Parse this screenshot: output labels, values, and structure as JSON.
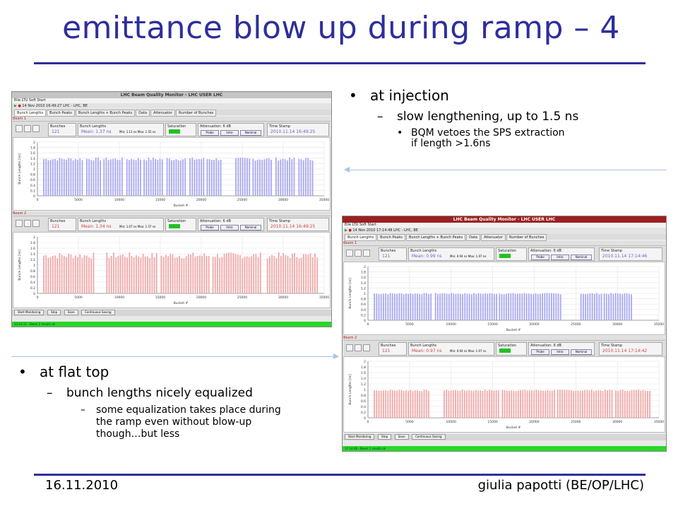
{
  "slide": {
    "title": "emittance blow up during ramp – 4",
    "footer_date": "16.11.2010",
    "footer_author": "giulia papotti (BE/OP/LHC)"
  },
  "injection": {
    "heading": "at injection",
    "sub": "slow lengthening, up to 1.5 ns",
    "detail_line1": "BQM vetoes the SPS extraction",
    "detail_line2": "if length >1.6ns"
  },
  "flattop": {
    "heading": "at flat top",
    "sub": "bunch lengths nicely equalized",
    "detail_line1": "some equalization takes place during",
    "detail_line2": "the ramp even without blow-up",
    "detail_line3": "though…but less"
  },
  "colors": {
    "accent": "#2e2e9c",
    "beam1": "#a8a8f0",
    "beam2": "#f0a8a8",
    "ok_green": "#28d828"
  },
  "screen1": {
    "window_title": "LHC Beam Quality Monitor - LHC USER LHC",
    "menu": "Eile  LTU Soft Start",
    "toolbar_text": "14 Nov 2010  16:49:27  LHC - LHC, BE",
    "tabs": [
      "Bunch Lengths",
      "Bunch Peaks",
      "Bunch Lengths + Bunch Peaks",
      "Data",
      "Attenuator",
      "Number of Bunches"
    ],
    "beam1_label": "Beam 1",
    "beam2_label": "Beam 2",
    "bunches_label": "Bunches",
    "bunch_lengths_label": "Bunch Lengths",
    "saturation_label": "Saturation",
    "attenuation_label_b1": "Attenuation: 6 dB",
    "attenuation_label_b2": "Attenuation: 6 dB",
    "timestamp_label": "Time Stamp",
    "b1_bunches": "121",
    "b1_mean": "Mean: 1.37 ns",
    "b1_minmax": "Min: 1.11 ns    Max: 1.55 ns",
    "b1_timestamp": "2010.11.14 16:49:25",
    "b2_bunches": "121",
    "b2_mean": "Mean: 1.34 ns",
    "b2_minmax": "Min: 1.07 ns    Max: 1.57 ns",
    "b2_timestamp": "2010.11.14 16:49:25",
    "btn_probe": "Probe",
    "btn_intro": "Intro",
    "btn_nominal": "Nominal",
    "ylabel": "Bunch Lengths [ns]",
    "xlabel": "Bucket #",
    "xticks": [
      "0",
      "5000",
      "10000",
      "15000",
      "20000",
      "25000",
      "30000",
      "35000"
    ],
    "yticks": [
      "0",
      "0.2",
      "0.4",
      "0.6",
      "0.8",
      "1",
      "1.2",
      "1.4",
      "1.6",
      "1.8",
      "2"
    ],
    "status_start": "Start Monitoring",
    "status_stop": "Stop",
    "status_save": "Save",
    "status_cont": "Continuous Saving",
    "green_text": "13:14:11 - Beam 2 results ok"
  },
  "screen2": {
    "window_title": "LHC Beam Quality Monitor - LHC USER LHC",
    "menu": "Eile  LTU Soft Start",
    "toolbar_text": "14 Nov 2010  17:14:48  LHC - LHC, BE",
    "tabs": [
      "Bunch Lengths",
      "Bunch Peaks",
      "Bunch Lengths + Bunch Peaks",
      "Data",
      "Attenuator",
      "Number of Bunches"
    ],
    "beam1_label": "Beam 1",
    "beam2_label": "Beam 2",
    "bunches_label": "Bunches",
    "bunch_lengths_label": "Bunch Lengths",
    "saturation_label": "Saturation",
    "attenuation_label_b1": "Attenuation: 6 dB",
    "attenuation_label_b2": "Attenuation: 6 dB",
    "timestamp_label": "Time Stamp",
    "b1_bunches": "121",
    "b1_mean": "Mean: 0.99 ns",
    "b1_minmax": "Min: 0.94 ns    Max: 1.07 ns",
    "b1_timestamp": "2010.11.14 17:14:46",
    "b2_bunches": "121",
    "b2_mean": "Mean: 0.97 ns",
    "b2_minmax": "Min: 0.94 ns    Max: 1.07 ns",
    "b2_timestamp": "2010.11.14 17:14:42",
    "btn_probe": "Probe",
    "btn_intro": "Intro",
    "btn_nominal": "Nominal",
    "ylabel": "Bunch Lengths [ns]",
    "xlabel": "Bucket #",
    "xticks": [
      "0",
      "5000",
      "10000",
      "15000",
      "20000",
      "25000",
      "30000",
      "35000"
    ],
    "yticks": [
      "0",
      "0.2",
      "0.4",
      "0.6",
      "0.8",
      "1",
      "1.2",
      "1.4",
      "1.6",
      "1.8",
      "2"
    ],
    "status_start": "Start Monitoring",
    "status_stop": "Stop",
    "status_save": "Save",
    "status_cont": "Continuous Saving",
    "green_text": "17:14:48 - Beam 1 results ok"
  }
}
